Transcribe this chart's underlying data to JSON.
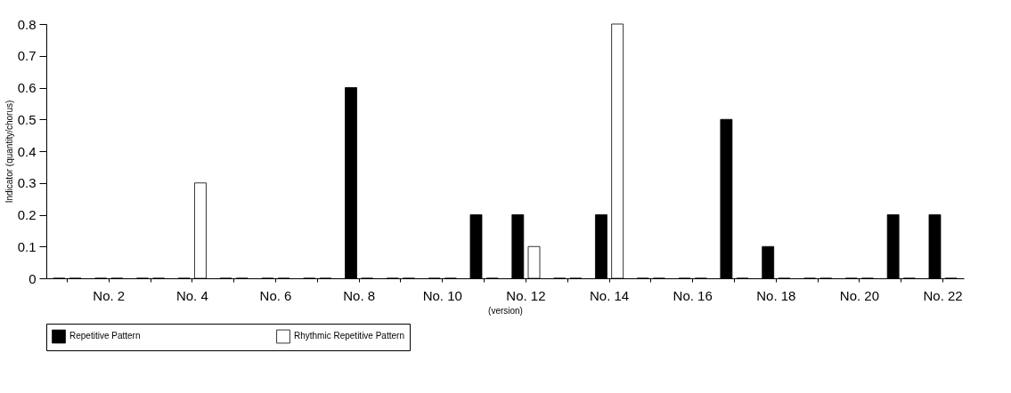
{
  "chart_data": {
    "type": "bar",
    "xlabel": "(version)",
    "ylabel": "Indicator (quantity/chorus)",
    "categories": [
      null,
      "No. 2",
      null,
      "No. 4",
      null,
      "No. 6",
      null,
      "No. 8",
      null,
      "No. 10",
      null,
      "No. 12",
      null,
      "No. 14",
      null,
      "No. 16",
      null,
      "No. 18",
      null,
      "No. 20",
      null,
      "No. 22"
    ],
    "series": [
      {
        "name": "Repetitive Pattern",
        "color": "#000000",
        "values": [
          0,
          0,
          0,
          0,
          0,
          0,
          0,
          0.6,
          0,
          0,
          0.2,
          0.2,
          0,
          0.2,
          0,
          0,
          0.5,
          0.1,
          0,
          0,
          0.2,
          0.2
        ]
      },
      {
        "name": "Rhythmic Repetitive Pattern",
        "color": "#ffffff",
        "values": [
          0,
          0,
          0,
          0.3,
          0,
          0,
          0,
          0,
          0,
          0,
          0,
          0.1,
          0,
          0.8,
          0,
          0,
          0,
          0,
          0,
          0,
          0,
          0
        ]
      }
    ],
    "ylim": [
      0,
      0.8
    ],
    "yticks": [
      0,
      0.1,
      0.2,
      0.3,
      0.4,
      0.5,
      0.6,
      0.7,
      0.8
    ],
    "grid": false,
    "legend": "bottom"
  }
}
